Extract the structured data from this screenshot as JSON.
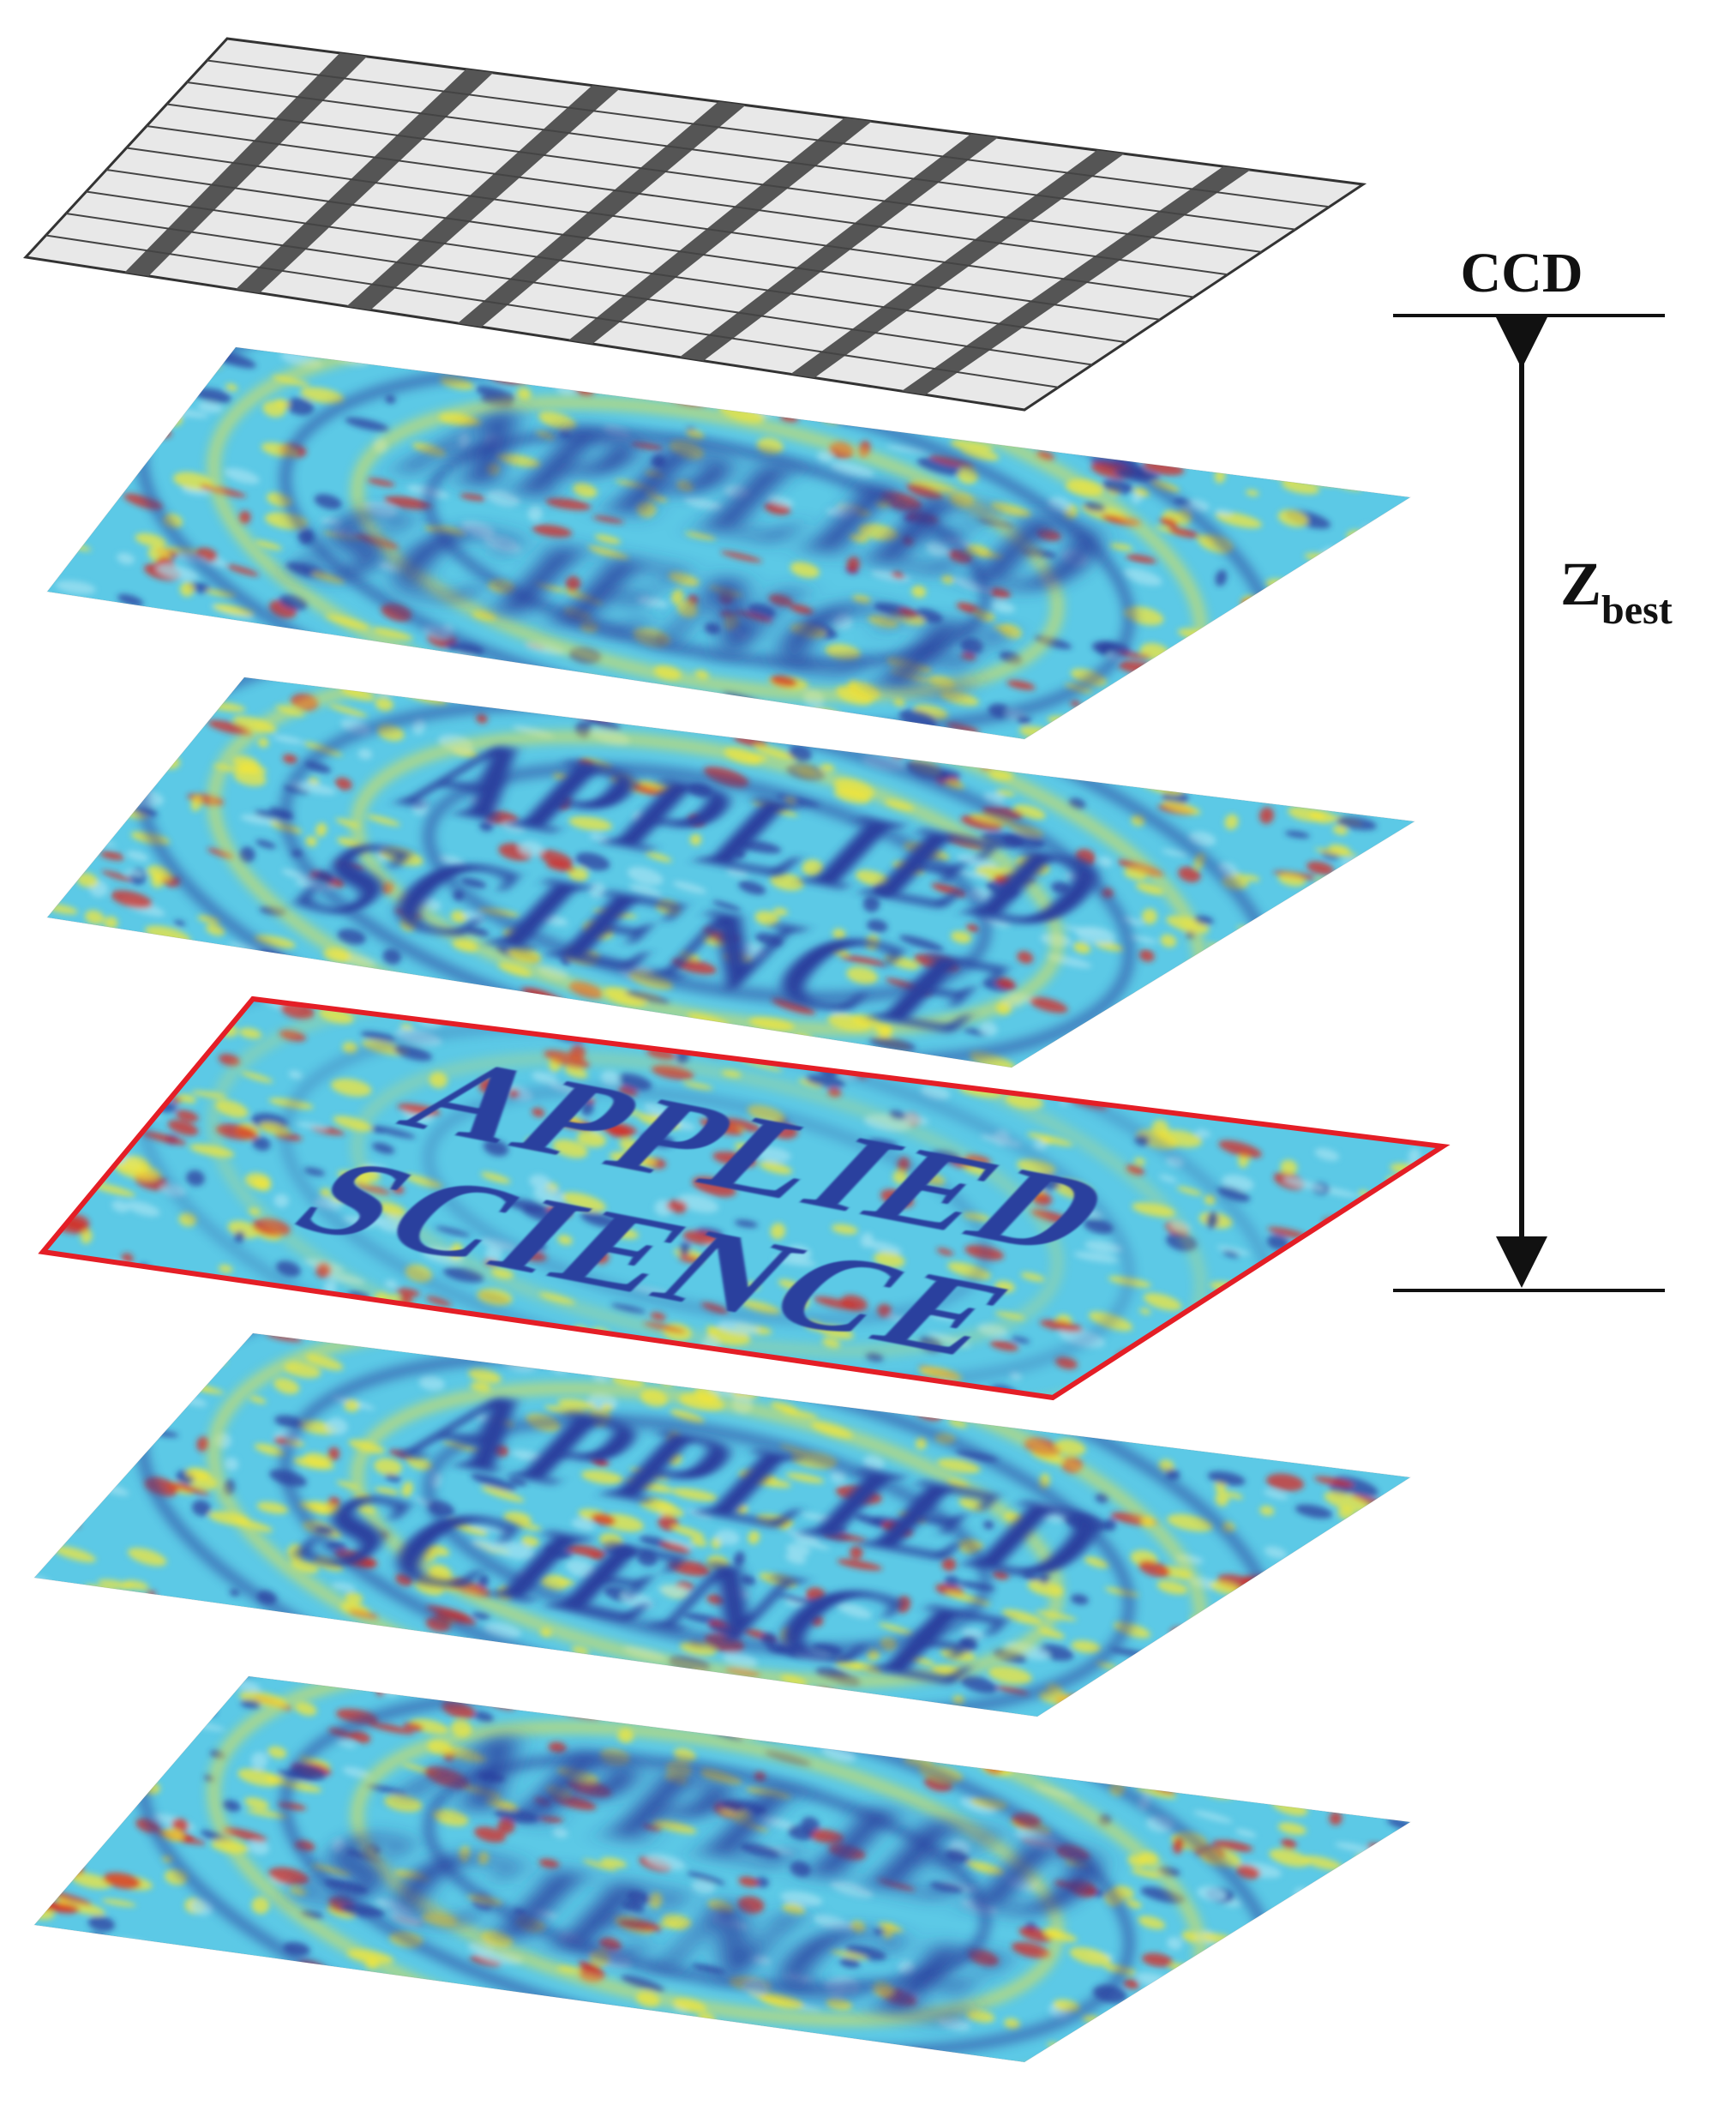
{
  "labels": {
    "ccd": "CCD",
    "distance_main": "Z",
    "distance_sub": "best"
  },
  "planes": [
    {
      "id": "plane-1",
      "text_line1": "APPLIED",
      "text_line2": "SCIENCE",
      "focus": "defocused",
      "highlighted": false
    },
    {
      "id": "plane-2",
      "text_line1": "APPLIED",
      "text_line2": "SCIENCE",
      "focus": "slightly-defocused",
      "highlighted": false
    },
    {
      "id": "plane-3",
      "text_line1": "APPLIED",
      "text_line2": "SCIENCE",
      "focus": "in-focus",
      "highlighted": true
    },
    {
      "id": "plane-4",
      "text_line1": "APPLIED",
      "text_line2": "SCIENCE",
      "focus": "slightly-defocused",
      "highlighted": false
    },
    {
      "id": "plane-5",
      "text_line1": "APPLIED",
      "text_line2": "SCIENCE",
      "focus": "defocused",
      "highlighted": false
    }
  ],
  "ccd_grid": {
    "columns": 9,
    "rows": 10
  },
  "colors": {
    "highlight_border": "#e41e26",
    "ccd_cell": "#e8e8e8",
    "ccd_bar": "#555555",
    "phase_low": "#2b3f9e",
    "phase_mid": "#5cc9e6",
    "phase_high": "#f3e538",
    "phase_peak": "#d9281f"
  }
}
